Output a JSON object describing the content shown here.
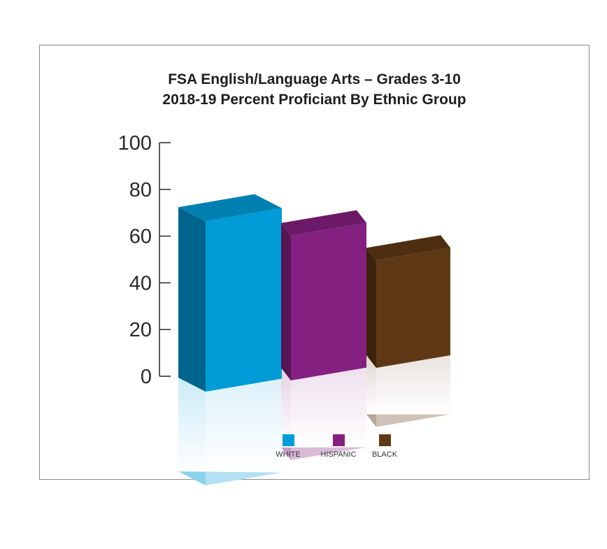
{
  "chart_data": {
    "type": "bar",
    "title": "FSA English/Language Arts – Grades 3-10",
    "subtitle": "2018-19 Percent Proficiant By Ethnic Group",
    "xlabel": "",
    "ylabel": "",
    "ylim": [
      0,
      100
    ],
    "yticks": [
      "0",
      "20",
      "40",
      "60",
      "80",
      "100"
    ],
    "categories": [
      "WHITE",
      "HISPANIC",
      "BLACK"
    ],
    "values": [
      73,
      62,
      46
    ],
    "colors": {
      "WHITE": "#009cd8",
      "HISPANIC": "#84207f",
      "BLACK": "#5e3815"
    },
    "legend_position": "bottom-center",
    "grid": false,
    "style": "3d-bars-with-reflection"
  }
}
